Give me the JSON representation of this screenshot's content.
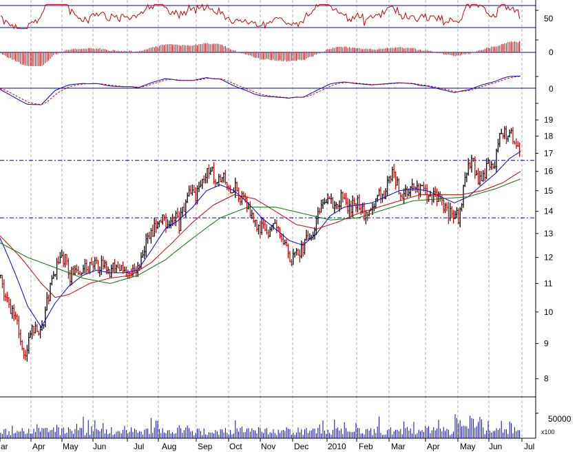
{
  "chart_data": [
    {
      "panel": "oscillator",
      "type": "line",
      "ylim": [
        0,
        100
      ],
      "y_tick_labels": [
        "50"
      ],
      "reference_levels": [
        70,
        30
      ],
      "series": [
        {
          "color": "#cc0000"
        }
      ]
    },
    {
      "panel": "momentum-histogram",
      "type": "bar",
      "y_tick_labels": [
        "0"
      ],
      "colors": {
        "bars": "#cc0000",
        "zero_line": "#0000aa"
      }
    },
    {
      "panel": "signal-oscillator",
      "type": "line",
      "y_tick_labels": [
        "0"
      ],
      "series": [
        {
          "color": "#0000cc",
          "style": "solid"
        },
        {
          "color": "#cc0000",
          "style": "dashed"
        }
      ]
    },
    {
      "panel": "price",
      "type": "ohlc",
      "scale": "log",
      "ylim": [
        7.6,
        19.9
      ],
      "y_ticks": [
        8,
        9,
        10,
        11,
        12,
        13,
        14,
        15,
        16,
        17,
        18,
        19
      ],
      "y_tick_labels": [
        "8",
        "9",
        "10",
        "11",
        "12",
        "13",
        "14",
        "15",
        "16",
        "17",
        "18",
        "19"
      ],
      "reference_levels": [
        16.6,
        13.7
      ],
      "bar_colors": {
        "up": "#000000",
        "down": "#dd0000"
      },
      "close_path": [
        [
          0,
          11.3
        ],
        [
          10,
          10.4
        ],
        [
          22,
          9.8
        ],
        [
          30,
          9.2
        ],
        [
          38,
          8.6
        ],
        [
          44,
          9.4
        ],
        [
          52,
          9.6
        ],
        [
          60,
          9.4
        ],
        [
          68,
          10.3
        ],
        [
          78,
          11.4
        ],
        [
          88,
          11.8
        ],
        [
          95,
          11.9
        ],
        [
          102,
          11.2
        ],
        [
          110,
          11.6
        ],
        [
          118,
          11.4
        ],
        [
          126,
          11.6
        ],
        [
          134,
          11.8
        ],
        [
          142,
          11.6
        ],
        [
          150,
          11.7
        ],
        [
          158,
          11.4
        ],
        [
          166,
          11.6
        ],
        [
          174,
          11.5
        ],
        [
          182,
          11.7
        ],
        [
          190,
          11.4
        ],
        [
          198,
          11.3
        ],
        [
          205,
          12.0
        ],
        [
          212,
          12.7
        ],
        [
          220,
          13.1
        ],
        [
          228,
          13.4
        ],
        [
          236,
          13.6
        ],
        [
          244,
          13.5
        ],
        [
          252,
          13.8
        ],
        [
          260,
          13.4
        ],
        [
          268,
          14.3
        ],
        [
          276,
          15.0
        ],
        [
          284,
          14.7
        ],
        [
          292,
          15.2
        ],
        [
          298,
          15.9
        ],
        [
          304,
          16.1
        ],
        [
          310,
          15.8
        ],
        [
          318,
          15.4
        ],
        [
          326,
          15.7
        ],
        [
          334,
          15.0
        ],
        [
          342,
          15.1
        ],
        [
          350,
          14.7
        ],
        [
          358,
          14.3
        ],
        [
          366,
          13.8
        ],
        [
          374,
          13.1
        ],
        [
          382,
          13.3
        ],
        [
          390,
          13.0
        ],
        [
          398,
          13.5
        ],
        [
          406,
          13.1
        ],
        [
          414,
          12.6
        ],
        [
          420,
          12.0
        ],
        [
          426,
          11.9
        ],
        [
          432,
          12.2
        ],
        [
          440,
          12.4
        ],
        [
          448,
          12.8
        ],
        [
          456,
          13.3
        ],
        [
          464,
          14.0
        ],
        [
          472,
          14.3
        ],
        [
          480,
          14.6
        ],
        [
          488,
          14.3
        ],
        [
          496,
          14.7
        ],
        [
          504,
          14.0
        ],
        [
          512,
          14.3
        ],
        [
          520,
          14.5
        ],
        [
          528,
          13.9
        ],
        [
          536,
          13.8
        ],
        [
          544,
          14.2
        ],
        [
          552,
          14.8
        ],
        [
          560,
          15.0
        ],
        [
          566,
          15.5
        ],
        [
          572,
          15.9
        ],
        [
          578,
          15.2
        ],
        [
          586,
          14.8
        ],
        [
          594,
          14.9
        ],
        [
          602,
          15.1
        ],
        [
          610,
          15.0
        ],
        [
          618,
          14.9
        ],
        [
          626,
          14.8
        ],
        [
          634,
          14.7
        ],
        [
          642,
          14.3
        ],
        [
          650,
          13.9
        ],
        [
          658,
          13.8
        ],
        [
          666,
          13.7
        ],
        [
          670,
          14.5
        ],
        [
          676,
          15.5
        ],
        [
          682,
          16.6
        ],
        [
          688,
          16.4
        ],
        [
          694,
          15.6
        ],
        [
          700,
          15.5
        ],
        [
          706,
          16.1
        ],
        [
          712,
          16.5
        ],
        [
          718,
          16.3
        ],
        [
          724,
          17.8
        ],
        [
          730,
          18.3
        ],
        [
          736,
          18.0
        ],
        [
          742,
          18.1
        ],
        [
          748,
          17.6
        ],
        [
          756,
          16.9
        ]
      ],
      "moving_averages": [
        {
          "color": "#0000cc",
          "points": [
            [
              0,
              12.8
            ],
            [
              20,
              11.5
            ],
            [
              40,
              10.2
            ],
            [
              60,
              9.5
            ],
            [
              80,
              10.3
            ],
            [
              100,
              10.9
            ],
            [
              120,
              11.3
            ],
            [
              140,
              11.5
            ],
            [
              160,
              11.4
            ],
            [
              180,
              11.4
            ],
            [
              200,
              11.5
            ],
            [
              220,
              12.3
            ],
            [
              240,
              13.2
            ],
            [
              260,
              13.6
            ],
            [
              280,
              14.2
            ],
            [
              300,
              15.0
            ],
            [
              320,
              15.3
            ],
            [
              340,
              15.0
            ],
            [
              360,
              14.4
            ],
            [
              380,
              13.7
            ],
            [
              400,
              13.2
            ],
            [
              420,
              12.7
            ],
            [
              440,
              12.5
            ],
            [
              460,
              13.0
            ],
            [
              480,
              13.8
            ],
            [
              500,
              14.2
            ],
            [
              520,
              14.3
            ],
            [
              540,
              14.4
            ],
            [
              560,
              14.7
            ],
            [
              580,
              15.0
            ],
            [
              600,
              15.1
            ],
            [
              620,
              15.0
            ],
            [
              640,
              14.7
            ],
            [
              660,
              14.4
            ],
            [
              680,
              14.7
            ],
            [
              700,
              15.3
            ],
            [
              720,
              15.9
            ],
            [
              740,
              16.7
            ],
            [
              756,
              17.1
            ]
          ]
        },
        {
          "color": "#cc0000",
          "points": [
            [
              0,
              12.9
            ],
            [
              30,
              12.0
            ],
            [
              60,
              11.0
            ],
            [
              80,
              10.5
            ],
            [
              100,
              10.6
            ],
            [
              130,
              11.0
            ],
            [
              160,
              11.2
            ],
            [
              190,
              11.3
            ],
            [
              220,
              11.8
            ],
            [
              250,
              12.6
            ],
            [
              280,
              13.5
            ],
            [
              310,
              14.3
            ],
            [
              340,
              14.8
            ],
            [
              370,
              14.6
            ],
            [
              400,
              14.0
            ],
            [
              430,
              13.4
            ],
            [
              460,
              13.2
            ],
            [
              490,
              13.5
            ],
            [
              520,
              13.9
            ],
            [
              550,
              14.2
            ],
            [
              580,
              14.5
            ],
            [
              610,
              14.8
            ],
            [
              640,
              14.8
            ],
            [
              670,
              14.8
            ],
            [
              700,
              15.0
            ],
            [
              730,
              15.4
            ],
            [
              756,
              16.0
            ]
          ]
        },
        {
          "color": "#007700",
          "points": [
            [
              0,
              12.6
            ],
            [
              40,
              12.0
            ],
            [
              80,
              11.6
            ],
            [
              120,
              11.2
            ],
            [
              160,
              11.0
            ],
            [
              200,
              11.3
            ],
            [
              240,
              11.9
            ],
            [
              280,
              12.8
            ],
            [
              320,
              13.7
            ],
            [
              360,
              14.2
            ],
            [
              400,
              14.2
            ],
            [
              440,
              13.9
            ],
            [
              480,
              13.6
            ],
            [
              520,
              13.7
            ],
            [
              560,
              14.1
            ],
            [
              600,
              14.5
            ],
            [
              640,
              14.6
            ],
            [
              680,
              14.7
            ],
            [
              720,
              15.1
            ],
            [
              756,
              15.6
            ]
          ]
        }
      ]
    },
    {
      "panel": "volume",
      "type": "bar",
      "ylim": [
        0,
        80000
      ],
      "y_tick_labels": [
        "50000"
      ],
      "unit_label": "x100",
      "color": "#0000cc"
    }
  ],
  "time_axis": {
    "labels": [
      "Mar",
      "Apr",
      "May",
      "Jun",
      "Jul",
      "Aug",
      "Sep",
      "Oct",
      "Nov",
      "Dec",
      "2010",
      "Feb",
      "Mar",
      "Apr",
      "May",
      "Jun",
      "Jul"
    ]
  },
  "colors": {
    "background": "#ffffff",
    "grid": "#b0b0b0",
    "reference_line": "#0000aa",
    "axis": "#000000"
  }
}
